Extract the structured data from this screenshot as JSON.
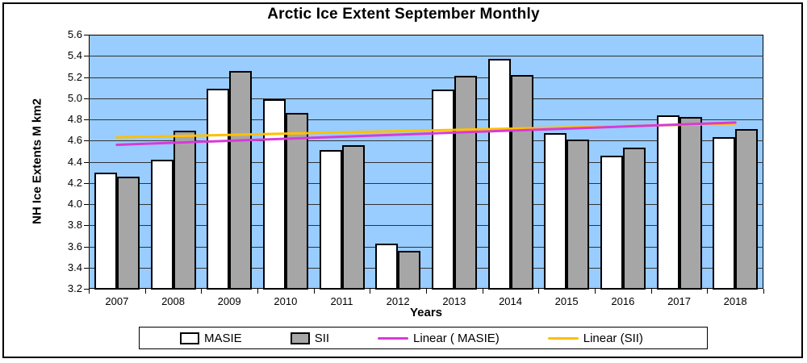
{
  "chart_data": {
    "type": "bar",
    "title": "Arctic Ice Extent September Monthly",
    "xlabel": "Years",
    "ylabel": "NH Ice Extents M km2",
    "categories": [
      "2007",
      "2008",
      "2009",
      "2010",
      "2011",
      "2012",
      "2013",
      "2014",
      "2015",
      "2016",
      "2017",
      "2018"
    ],
    "series": [
      {
        "name": "MASIE",
        "color": "#FFFFFF",
        "values": [
          4.3,
          4.42,
          5.09,
          4.99,
          4.51,
          3.63,
          5.08,
          5.37,
          4.67,
          4.46,
          4.84,
          4.63
        ]
      },
      {
        "name": "SII",
        "color": "#A6A6A6",
        "values": [
          4.26,
          4.69,
          5.26,
          4.86,
          4.56,
          3.56,
          5.21,
          5.22,
          4.61,
          4.53,
          4.82,
          4.71
        ]
      }
    ],
    "trendlines": [
      {
        "name": "Linear ( MASIE)",
        "color": "#D63BD6",
        "start": 4.56,
        "end": 4.77
      },
      {
        "name": "Linear (SII)",
        "color": "#FFC000",
        "start": 4.63,
        "end": 4.76
      }
    ],
    "ylim": [
      3.2,
      5.6
    ],
    "ytick_step": 0.2,
    "ytick_format_decimals": 1,
    "grid": true,
    "legend_position": "bottom",
    "plot_bg": "#99CCFF",
    "gridline_color": "#333333",
    "bar_border_color": "#000000"
  }
}
